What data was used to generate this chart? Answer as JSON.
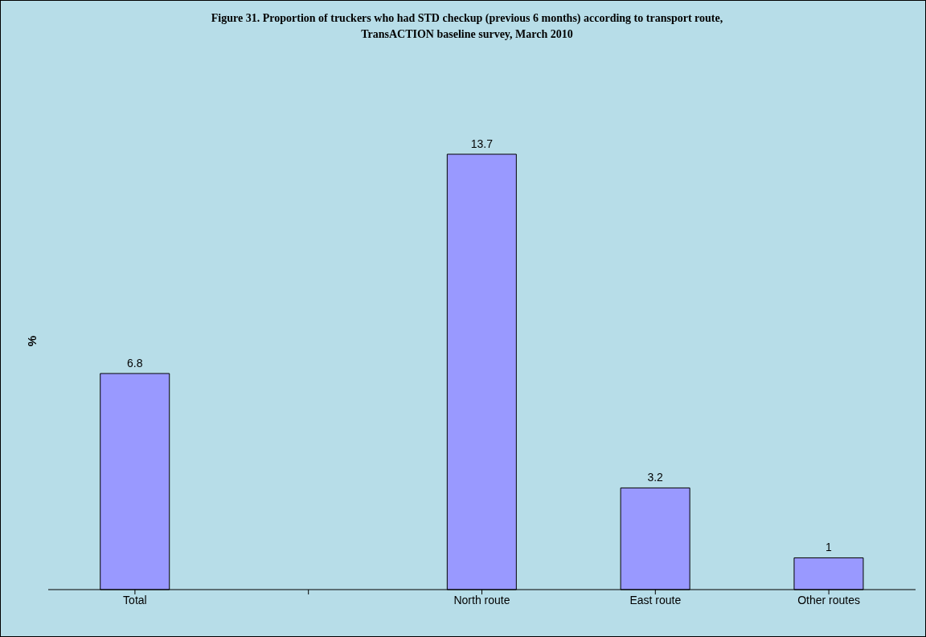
{
  "chart_data": {
    "type": "bar",
    "title": "Figure 31. Proportion of truckers who had STD checkup (previous 6 months) according to transport route, TransACTION baseline survey, March 2010",
    "ylabel": "%",
    "categories": [
      "Total",
      null,
      "North route",
      "East route",
      "Other routes"
    ],
    "values": [
      6.8,
      null,
      13.7,
      3.2,
      1
    ],
    "color": "#9999ff",
    "data_labels": true
  }
}
